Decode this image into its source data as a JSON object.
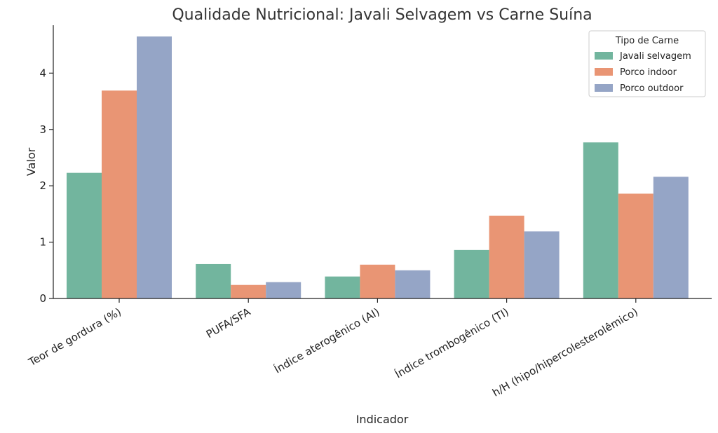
{
  "chart_data": {
    "type": "bar",
    "title": "Qualidade Nutricional: Javali Selvagem vs Carne Suína",
    "xlabel": "Indicador",
    "ylabel": "Valor",
    "ylim": [
      0,
      4.85
    ],
    "yticks": [
      0,
      1,
      2,
      3,
      4
    ],
    "categories": [
      "Teor de gordura (%)",
      "PUFA/SFA",
      "Índice aterogênico (AI)",
      "Índice trombogênico (TI)",
      "h/H (hipo/hipercolesterolêmico)"
    ],
    "series": [
      {
        "name": "Javali selvagem",
        "color": "#72b59e",
        "values": [
          2.23,
          0.61,
          0.39,
          0.86,
          2.77
        ]
      },
      {
        "name": "Porco indoor",
        "color": "#e99574",
        "values": [
          3.69,
          0.24,
          0.6,
          1.47,
          1.86
        ]
      },
      {
        "name": "Porco outdoor",
        "color": "#95a5c6",
        "values": [
          4.65,
          0.29,
          0.5,
          1.19,
          2.16
        ]
      }
    ],
    "legend": {
      "title": "Tipo de Carne",
      "placement": "top-right"
    },
    "grid": false
  }
}
